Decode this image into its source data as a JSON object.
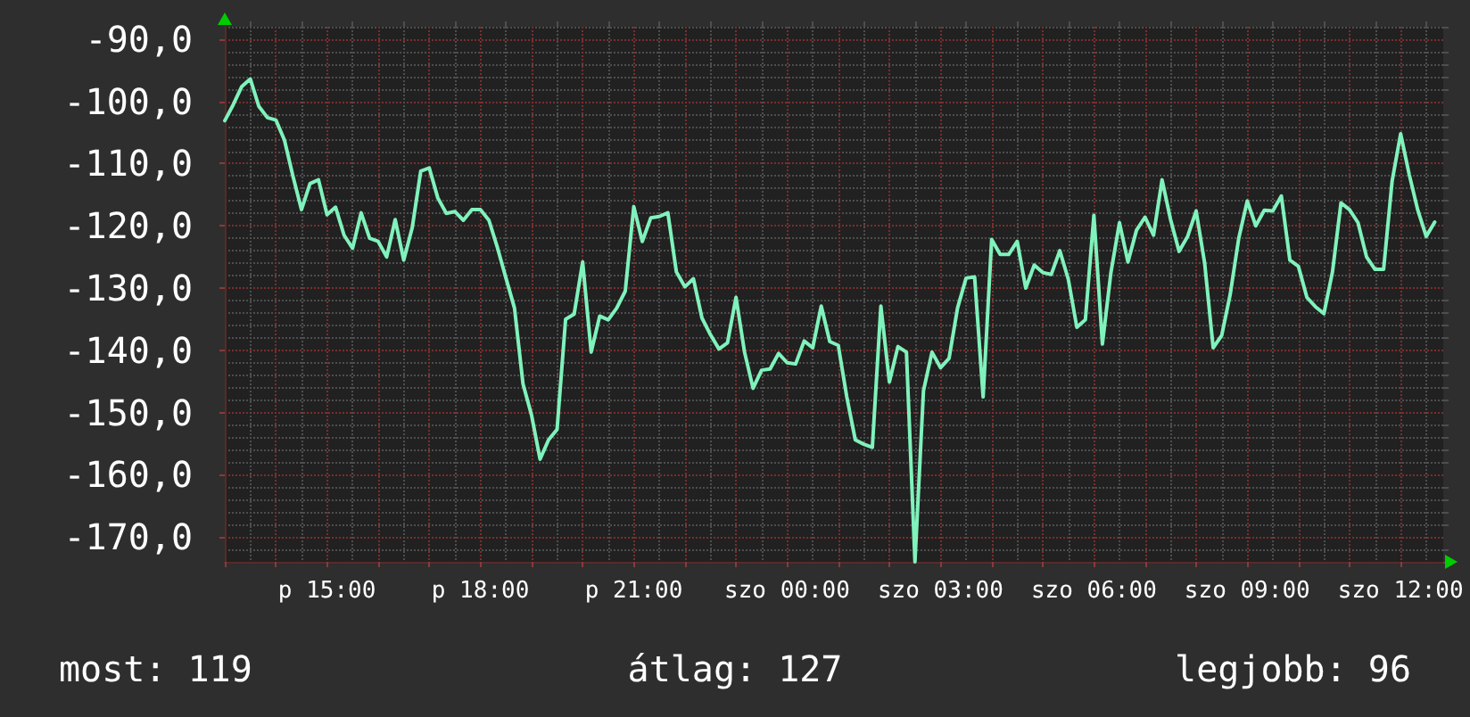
{
  "chart_data": {
    "type": "line",
    "color": "#80f2bc",
    "marker": "none",
    "line_style": "solid",
    "grid": true,
    "categories": [
      null,
      null,
      null,
      null,
      null,
      null,
      null,
      null,
      null,
      null,
      null,
      null,
      "p 15:00",
      null,
      null,
      null,
      null,
      null,
      null,
      null,
      null,
      null,
      null,
      null,
      null,
      null,
      null,
      null,
      null,
      null,
      "p 18:00",
      null,
      null,
      null,
      null,
      null,
      null,
      null,
      null,
      null,
      null,
      null,
      null,
      null,
      null,
      null,
      null,
      null,
      "p 21:00",
      null,
      null,
      null,
      null,
      null,
      null,
      null,
      null,
      null,
      null,
      null,
      null,
      null,
      null,
      null,
      null,
      null,
      "szo 00:00",
      null,
      null,
      null,
      null,
      null,
      null,
      null,
      null,
      null,
      null,
      null,
      null,
      null,
      null,
      null,
      null,
      null,
      "szo 03:00",
      null,
      null,
      null,
      null,
      null,
      null,
      null,
      null,
      null,
      null,
      null,
      null,
      null,
      null,
      null,
      null,
      null,
      "szo 06:00",
      null,
      null,
      null,
      null,
      null,
      null,
      null,
      null,
      null,
      null,
      null,
      null,
      null,
      null,
      null,
      null,
      null,
      "szo 09:00",
      null,
      null,
      null,
      null,
      null,
      null,
      null,
      null,
      null,
      null,
      null,
      null,
      null,
      null,
      null,
      null,
      null,
      "szo 12:00",
      null,
      null,
      null,
      null,
      null
    ],
    "values": [
      -103.1,
      -100.5,
      -97.6,
      -96.4,
      -100.8,
      -102.6,
      -103.0,
      -106.2,
      -112.0,
      -117.4,
      -113.2,
      -112.6,
      -118.2,
      -117.0,
      -121.5,
      -123.6,
      -117.9,
      -122.0,
      -122.5,
      -125.0,
      -119.0,
      -125.5,
      -120.3,
      -111.2,
      -110.7,
      -115.5,
      -118.0,
      -117.7,
      -119.1,
      -117.4,
      -117.4,
      -119.1,
      -123.5,
      -128.4,
      -133.2,
      -145.4,
      -150.4,
      -157.5,
      -154.4,
      -152.7,
      -135.0,
      -134.2,
      -125.8,
      -140.3,
      -134.5,
      -135.1,
      -133.2,
      -130.5,
      -116.9,
      -122.5,
      -118.7,
      -118.5,
      -117.9,
      -127.4,
      -129.8,
      -128.5,
      -134.8,
      -137.5,
      -139.8,
      -138.8,
      -131.5,
      -140.3,
      -146.1,
      -143.2,
      -143.0,
      -140.5,
      -142.0,
      -142.2,
      -138.5,
      -139.6,
      -132.9,
      -138.6,
      -139.2,
      -147.5,
      -154.4,
      -155.1,
      -155.6,
      -132.9,
      -145.1,
      -139.4,
      -140.3,
      -174,
      -146.5,
      -140.3,
      -142.8,
      -141.3,
      -133.2,
      -128.4,
      -128.2,
      -147.5,
      -122.2,
      -124.6,
      -124.6,
      -122.5,
      -130.0,
      -126.3,
      -127.5,
      -127.8,
      -124.0,
      -128.6,
      -136.3,
      -135.1,
      -118.3,
      -139.0,
      -127.5,
      -119.5,
      -125.8,
      -120.7,
      -118.6,
      -121.5,
      -112.6,
      -119.0,
      -124.1,
      -121.7,
      -117.6,
      -126.0,
      -139.6,
      -137.6,
      -131.0,
      -122.0,
      -116.0,
      -120.0,
      -117.5,
      -117.6,
      -115.2,
      -125.5,
      -126.5,
      -131.5,
      -133.0,
      -134.1,
      -127.4,
      -116.3,
      -117.4,
      -119.5,
      -125.0,
      -127.0,
      -127.0,
      -112.8,
      -105.2,
      -111.7,
      -117.4,
      -121.7,
      -119.4,
      null
    ],
    "ylim": [
      -174,
      -88
    ],
    "yticks": [
      {
        "value": -170,
        "label": "-170,0"
      },
      {
        "value": -160,
        "label": "-160,0"
      },
      {
        "value": -150,
        "label": "-150,0"
      },
      {
        "value": -140,
        "label": "-140,0"
      },
      {
        "value": -130,
        "label": "-130,0"
      },
      {
        "value": -120,
        "label": "-120,0"
      },
      {
        "value": -110,
        "label": "-110,0"
      },
      {
        "value": -100,
        "label": "-100,0"
      },
      {
        "value": -90,
        "label": "-90,0"
      }
    ],
    "annotations": [
      "most: 119",
      "átlag: 127",
      "legjobb: 96"
    ]
  }
}
